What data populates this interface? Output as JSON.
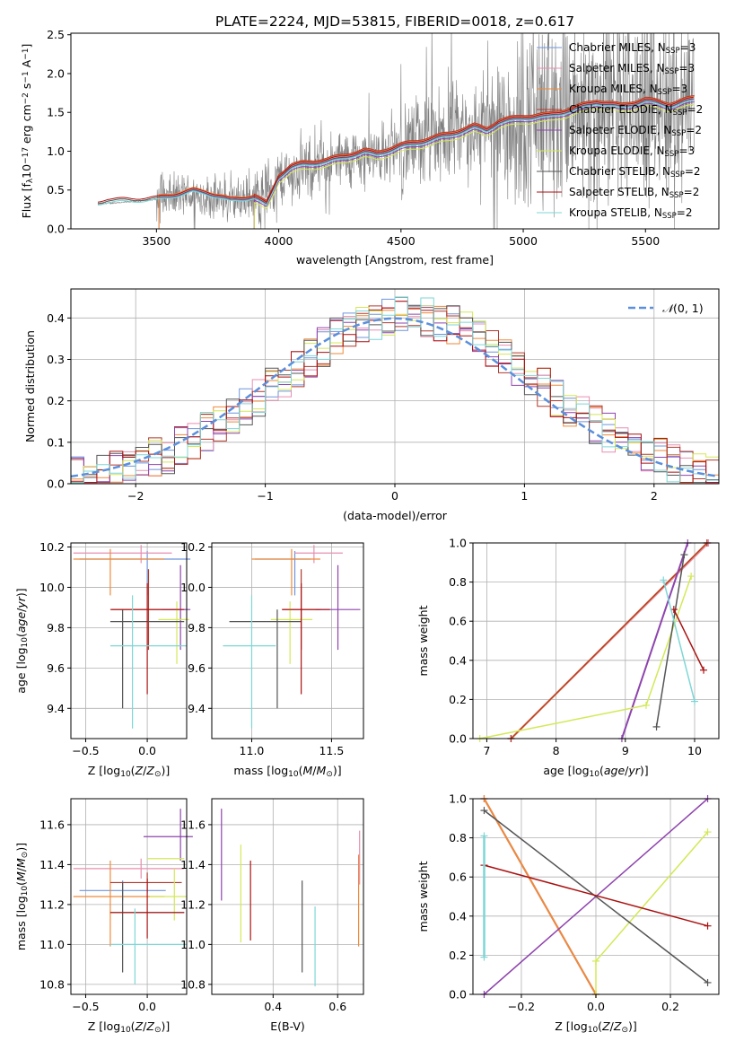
{
  "figure": {
    "title": "PLATE=2224, MJD=53815, FIBERID=0018, z=0.617"
  },
  "colors": {
    "chabrier_miles": "#6f94dc",
    "salpeter_miles": "#e78fb1",
    "kroupa_miles": "#ee8a3a",
    "chabrier_elodie": "#b0392e",
    "salpeter_elodie": "#8e44ad",
    "kroupa_elodie": "#d4e857",
    "chabrier_stelib": "#555555",
    "salpeter_stelib": "#aa1111",
    "kroupa_stelib": "#7fd6d6",
    "data": "#808080",
    "normal_curve": "#5b8fdc"
  },
  "chart_data": [
    {
      "type": "line",
      "ylabel": "Flux [f$_\\lambda$10$^{-17}$ erg cm$^{-2}$ s$^{-1}$ A$^{-1}$]",
      "ylabel_text": "Flux [fλ10⁻¹⁷ erg cm⁻² s⁻¹ A⁻¹]",
      "xlabel": "wavelength [Angstrom, rest frame]",
      "xlim": [
        3150,
        5800
      ],
      "ylim": [
        0,
        2.52
      ],
      "xticks": [
        3500,
        4000,
        4500,
        5000,
        5500
      ],
      "yticks": [
        0.0,
        0.5,
        1.0,
        1.5,
        2.0,
        2.5
      ],
      "grid": false,
      "legend_position": "upper-right",
      "data_series": {
        "name": "data",
        "x_start": 3260,
        "x_end": 5700,
        "continuum_x": [
          3260,
          3400,
          3500,
          3600,
          3700,
          3800,
          3900,
          4000,
          4100,
          4200,
          4300,
          4400,
          4500,
          4600,
          4700,
          4800,
          4900,
          5000,
          5100,
          5200,
          5300,
          5400,
          5500,
          5600,
          5700
        ],
        "continuum_y": [
          0.32,
          0.35,
          0.38,
          0.44,
          0.42,
          0.36,
          0.4,
          0.64,
          0.74,
          0.84,
          0.9,
          0.96,
          1.05,
          1.12,
          1.22,
          1.3,
          1.37,
          1.45,
          1.46,
          1.52,
          1.62,
          1.55,
          1.65,
          1.58,
          1.68
        ]
      },
      "model_continuum_x": [
        3260,
        3300,
        3400,
        3500,
        3600,
        3650,
        3700,
        3800,
        3900,
        3950,
        4000,
        4050,
        4100,
        4200,
        4300,
        4350,
        4400,
        4500,
        4600,
        4700,
        4800,
        4850,
        4900,
        5000,
        5100,
        5200,
        5300,
        5400,
        5500,
        5600,
        5700
      ],
      "model_continuum_y": [
        0.32,
        0.36,
        0.36,
        0.38,
        0.44,
        0.48,
        0.46,
        0.36,
        0.4,
        0.3,
        0.66,
        0.78,
        0.82,
        0.86,
        0.94,
        0.98,
        0.95,
        1.05,
        1.12,
        1.2,
        1.3,
        1.26,
        1.36,
        1.42,
        1.44,
        1.52,
        1.62,
        1.56,
        1.64,
        1.58,
        1.66
      ],
      "series": [
        {
          "name": "Chabrier MILES, N$_{SSP}$=3",
          "label": "Chabrier MILES, N",
          "sub": "SSP",
          "suffix": "=3",
          "color_key": "chabrier_miles",
          "x_start": 3510,
          "offset": 0.0
        },
        {
          "name": "Salpeter MILES, N$_{SSP}$=3",
          "label": "Salpeter MILES, N",
          "sub": "SSP",
          "suffix": "=3",
          "color_key": "salpeter_miles",
          "x_start": 3510,
          "offset": 0.02
        },
        {
          "name": "Kroupa MILES, N$_{SSP}$=3",
          "label": "Kroupa MILES, N",
          "sub": "SSP",
          "suffix": "=3",
          "color_key": "kroupa_miles",
          "x_start": 3510,
          "offset": 0.04
        },
        {
          "name": "Chabrier ELODIE, N$_{SSP}$=2",
          "label": "Chabrier ELODIE, N",
          "sub": "SSP",
          "suffix": "=2",
          "color_key": "chabrier_elodie",
          "x_start": 3900,
          "offset": 0.05
        },
        {
          "name": "Salpeter ELODIE, N$_{SSP}$=2",
          "label": "Salpeter ELODIE, N",
          "sub": "SSP",
          "suffix": "=2",
          "color_key": "salpeter_elodie",
          "x_start": 3900,
          "offset": -0.03
        },
        {
          "name": "Kroupa ELODIE, N$_{SSP}$=3",
          "label": "Kroupa ELODIE, N",
          "sub": "SSP",
          "suffix": "=3",
          "color_key": "kroupa_elodie",
          "x_start": 3900,
          "offset": -0.06
        },
        {
          "name": "Chabrier STELIB, N$_{SSP}$=2",
          "label": "Chabrier STELIB, N",
          "sub": "SSP",
          "suffix": "=2",
          "color_key": "chabrier_stelib",
          "x_start": 3260,
          "offset": 0.01
        },
        {
          "name": "Salpeter STELIB, N$_{SSP}$=2",
          "label": "Salpeter STELIB, N",
          "sub": "SSP",
          "suffix": "=2",
          "color_key": "salpeter_stelib",
          "x_start": 3260,
          "offset": 0.03
        },
        {
          "name": "Kroupa STELIB, N$_{SSP}$=2",
          "label": "Kroupa STELIB, N",
          "sub": "SSP",
          "suffix": "=2",
          "color_key": "kroupa_stelib",
          "x_start": 3260,
          "offset": -0.01
        }
      ]
    },
    {
      "type": "histogram",
      "xlabel": "(data-model)/error",
      "ylabel": "Normed distribution",
      "xlim": [
        -2.5,
        2.5
      ],
      "ylim": [
        0,
        0.47
      ],
      "xticks": [
        -2,
        -1,
        0,
        1,
        2
      ],
      "yticks": [
        0.0,
        0.1,
        0.2,
        0.3,
        0.4
      ],
      "grid": true,
      "bin_width": 0.1,
      "legend_position": "upper-right",
      "legend_label": "N(0,1)",
      "curve": {
        "name": "N(0,1)",
        "mean": 0,
        "sigma": 1,
        "color_key": "normal_curve"
      },
      "hist_color_keys": [
        "chabrier_miles",
        "salpeter_miles",
        "kroupa_miles",
        "chabrier_elodie",
        "salpeter_elodie",
        "kroupa_elodie",
        "chabrier_stelib",
        "salpeter_stelib",
        "kroupa_stelib"
      ],
      "jitter": 0.05
    },
    {
      "type": "errorbar",
      "xlabel": "Z [log$_{10}$(Z/Z$_\\odot$)]",
      "ylabel": "age  [log$_{10}$(age/yr)]",
      "xlim": [
        -0.62,
        0.32
      ],
      "ylim": [
        9.25,
        10.22
      ],
      "xticks": [
        -0.5,
        0.0
      ],
      "yticks": [
        9.4,
        9.6,
        9.8,
        10.0,
        10.2
      ],
      "grid": true,
      "points": [
        {
          "color_key": "chabrier_miles",
          "x": 0.0,
          "xerr_lo": 0.55,
          "xerr_hi": 0.35,
          "y": 10.14,
          "yerr_lo": 0.18,
          "yerr_hi": 0.04
        },
        {
          "color_key": "salpeter_miles",
          "x": -0.05,
          "xerr_lo": 0.55,
          "xerr_hi": 0.25,
          "y": 10.17,
          "yerr_lo": 0.05,
          "yerr_hi": 0.04
        },
        {
          "color_key": "kroupa_miles",
          "x": -0.3,
          "xerr_lo": 0.3,
          "xerr_hi": 0.44,
          "y": 10.14,
          "yerr_lo": 0.18,
          "yerr_hi": 0.05
        },
        {
          "color_key": "chabrier_elodie",
          "x": 0.01,
          "xerr_lo": 0.3,
          "xerr_hi": 0.25,
          "y": 9.89,
          "yerr_lo": 0.2,
          "yerr_hi": 0.2
        },
        {
          "color_key": "salpeter_elodie",
          "x": 0.27,
          "xerr_lo": 0.15,
          "xerr_hi": 0.08,
          "y": 9.89,
          "yerr_lo": 0.2,
          "yerr_hi": 0.22
        },
        {
          "color_key": "kroupa_elodie",
          "x": 0.24,
          "xerr_lo": 0.15,
          "xerr_hi": 0.1,
          "y": 9.84,
          "yerr_lo": 0.22,
          "yerr_hi": 0.09
        },
        {
          "color_key": "chabrier_stelib",
          "x": -0.2,
          "xerr_lo": 0.1,
          "xerr_hi": 0.5,
          "y": 9.83,
          "yerr_lo": 0.43,
          "yerr_hi": 0.06
        },
        {
          "color_key": "salpeter_stelib",
          "x": 0.0,
          "xerr_lo": 0.3,
          "xerr_hi": 0.3,
          "y": 9.89,
          "yerr_lo": 0.42,
          "yerr_hi": 0.13
        },
        {
          "color_key": "kroupa_stelib",
          "x": -0.12,
          "xerr_lo": 0.18,
          "xerr_hi": 0.44,
          "y": 9.71,
          "yerr_lo": 0.41,
          "yerr_hi": 0.25
        }
      ]
    },
    {
      "type": "errorbar",
      "xlabel": "mass [log$_{10}$(M/M$_\\odot$)]",
      "ylabel": "",
      "xlim": [
        10.75,
        11.7
      ],
      "ylim": [
        9.25,
        10.22
      ],
      "xticks": [
        11.0,
        11.5
      ],
      "yticks": [
        9.4,
        9.6,
        9.8,
        10.0,
        10.2
      ],
      "grid": true,
      "points": [
        {
          "color_key": "chabrier_miles",
          "x": 11.27,
          "xerr_lo": 0.25,
          "xerr_hi": 0.1,
          "y": 10.14,
          "yerr_lo": 0.18,
          "yerr_hi": 0.04
        },
        {
          "color_key": "salpeter_miles",
          "x": 11.39,
          "xerr_lo": 0.12,
          "xerr_hi": 0.18,
          "y": 10.17,
          "yerr_lo": 0.05,
          "yerr_hi": 0.04
        },
        {
          "color_key": "kroupa_miles",
          "x": 11.25,
          "xerr_lo": 0.25,
          "xerr_hi": 0.18,
          "y": 10.14,
          "yerr_lo": 0.18,
          "yerr_hi": 0.05
        },
        {
          "color_key": "chabrier_elodie",
          "x": 11.31,
          "xerr_lo": 0.12,
          "xerr_hi": 0.12,
          "y": 9.89,
          "yerr_lo": 0.2,
          "yerr_hi": 0.2
        },
        {
          "color_key": "salpeter_elodie",
          "x": 11.54,
          "xerr_lo": 0.14,
          "xerr_hi": 0.14,
          "y": 9.89,
          "yerr_lo": 0.2,
          "yerr_hi": 0.22
        },
        {
          "color_key": "kroupa_elodie",
          "x": 11.24,
          "xerr_lo": 0.12,
          "xerr_hi": 0.14,
          "y": 9.84,
          "yerr_lo": 0.22,
          "yerr_hi": 0.09
        },
        {
          "color_key": "chabrier_stelib",
          "x": 11.16,
          "xerr_lo": 0.3,
          "xerr_hi": 0.15,
          "y": 9.83,
          "yerr_lo": 0.43,
          "yerr_hi": 0.06
        },
        {
          "color_key": "salpeter_stelib",
          "x": 11.31,
          "xerr_lo": 0.12,
          "xerr_hi": 0.18,
          "y": 9.89,
          "yerr_lo": 0.42,
          "yerr_hi": 0.13
        },
        {
          "color_key": "kroupa_stelib",
          "x": 11.0,
          "xerr_lo": 0.18,
          "xerr_hi": 0.15,
          "y": 9.71,
          "yerr_lo": 0.41,
          "yerr_hi": 0.25
        }
      ]
    },
    {
      "type": "line",
      "xlabel": "age  [log$_{10}$(age/yr)]",
      "ylabel": "mass weight",
      "xlim": [
        6.8,
        10.35
      ],
      "ylim": [
        0,
        1
      ],
      "xticks": [
        7,
        8,
        9,
        10
      ],
      "yticks": [
        0.0,
        0.2,
        0.4,
        0.6,
        0.8,
        1.0
      ],
      "grid": true,
      "series": [
        {
          "color_key": "chabrier_miles",
          "x": [
            7.35,
            10.18
          ],
          "y": [
            0.0,
            1.0
          ],
          "width": 2
        },
        {
          "color_key": "salpeter_miles",
          "x": [
            7.35,
            10.2
          ],
          "y": [
            0.0,
            1.0
          ],
          "width": 2
        },
        {
          "color_key": "kroupa_miles",
          "x": [
            7.35,
            10.18
          ],
          "y": [
            0.0,
            1.0
          ],
          "width": 2
        },
        {
          "color_key": "chabrier_elodie",
          "x": [
            7.35,
            10.18
          ],
          "y": [
            0.0,
            1.0
          ],
          "width": 1.2
        },
        {
          "color_key": "salpeter_elodie",
          "x": [
            8.95,
            9.9
          ],
          "y": [
            0.0,
            1.0
          ],
          "width": 2
        },
        {
          "color_key": "kroupa_elodie",
          "x": [
            6.9,
            9.3,
            9.95
          ],
          "y": [
            0.0,
            0.17,
            0.83
          ],
          "width": 1.5
        },
        {
          "color_key": "chabrier_stelib",
          "x": [
            9.45,
            9.85
          ],
          "y": [
            0.06,
            0.94
          ],
          "width": 1.5
        },
        {
          "color_key": "salpeter_stelib",
          "x": [
            9.7,
            10.13
          ],
          "y": [
            0.66,
            0.35
          ],
          "width": 1.5
        },
        {
          "color_key": "kroupa_stelib",
          "x": [
            9.55,
            10.0
          ],
          "y": [
            0.81,
            0.19
          ],
          "width": 1.5
        }
      ]
    },
    {
      "type": "errorbar",
      "xlabel": "Z [log$_{10}$(Z/Z$_\\odot$)]",
      "ylabel": "mass [log$_{10}$(M/M$_\\odot$)]",
      "xlim": [
        -0.62,
        0.32
      ],
      "ylim": [
        10.75,
        11.73
      ],
      "xticks": [
        -0.5,
        0.0
      ],
      "yticks": [
        10.8,
        11.0,
        11.2,
        11.4,
        11.6
      ],
      "grid": true,
      "points": [
        {
          "color_key": "chabrier_miles",
          "x": -0.2,
          "xerr_lo": 0.35,
          "xerr_hi": 0.35,
          "y": 11.27,
          "yerr_lo": 0.05,
          "yerr_hi": 0.05
        },
        {
          "color_key": "salpeter_miles",
          "x": -0.05,
          "xerr_lo": 0.55,
          "xerr_hi": 0.35,
          "y": 11.38,
          "yerr_lo": 0.05,
          "yerr_hi": 0.05
        },
        {
          "color_key": "kroupa_miles",
          "x": -0.3,
          "xerr_lo": 0.3,
          "xerr_hi": 0.44,
          "y": 11.24,
          "yerr_lo": 0.25,
          "yerr_hi": 0.18
        },
        {
          "color_key": "chabrier_elodie",
          "x": 0.0,
          "xerr_lo": 0.3,
          "xerr_hi": 0.28,
          "y": 11.31,
          "yerr_lo": 0.05,
          "yerr_hi": 0.05
        },
        {
          "color_key": "salpeter_elodie",
          "x": 0.27,
          "xerr_lo": 0.3,
          "xerr_hi": 0.1,
          "y": 11.54,
          "yerr_lo": 0.12,
          "yerr_hi": 0.14
        },
        {
          "color_key": "kroupa_elodie",
          "x": 0.22,
          "xerr_lo": 0.2,
          "xerr_hi": 0.1,
          "y": 11.24,
          "yerr_lo": 0.12,
          "yerr_hi": 0.14
        },
        {
          "color_key": "chabrier_stelib",
          "x": -0.2,
          "xerr_lo": 0.1,
          "xerr_hi": 0.5,
          "y": 11.16,
          "yerr_lo": 0.3,
          "yerr_hi": 0.15
        },
        {
          "color_key": "salpeter_stelib",
          "x": 0.0,
          "xerr_lo": 0.3,
          "xerr_hi": 0.3,
          "y": 11.16,
          "yerr_lo": 0.13,
          "yerr_hi": 0.17
        },
        {
          "color_key": "kroupa_stelib",
          "x": -0.1,
          "xerr_lo": 0.2,
          "xerr_hi": 0.42,
          "y": 11.0,
          "yerr_lo": 0.2,
          "yerr_hi": 0.18
        },
        {
          "color_key": "kroupa_elodie",
          "x": 0.0,
          "xerr_lo": 0.0,
          "xerr_hi": 0.3,
          "y": 11.43,
          "yerr_lo": 0.0,
          "yerr_hi": 0.0
        }
      ]
    },
    {
      "type": "errorbar",
      "xlabel": "E(B-V)",
      "ylabel": "",
      "xlim": [
        0.21,
        0.68
      ],
      "ylim": [
        10.75,
        11.73
      ],
      "xticks": [
        0.4,
        0.6
      ],
      "yticks": [
        10.8,
        11.0,
        11.2,
        11.4,
        11.6
      ],
      "grid": true,
      "points": [
        {
          "color_key": "salpeter_elodie",
          "x": 0.24,
          "y": 11.45,
          "yerr_lo": 0.23,
          "yerr_hi": 0.23
        },
        {
          "color_key": "kroupa_elodie",
          "x": 0.3,
          "y": 11.25,
          "yerr_lo": 0.24,
          "yerr_hi": 0.25
        },
        {
          "color_key": "salpeter_stelib",
          "x": 0.33,
          "y": 11.22,
          "yerr_lo": 0.2,
          "yerr_hi": 0.2
        },
        {
          "color_key": "chabrier_stelib",
          "x": 0.49,
          "y": 11.09,
          "yerr_lo": 0.23,
          "yerr_hi": 0.23
        },
        {
          "color_key": "kroupa_stelib",
          "x": 0.53,
          "y": 10.99,
          "yerr_lo": 0.2,
          "yerr_hi": 0.2
        },
        {
          "color_key": "kroupa_miles",
          "x": 0.665,
          "y": 11.25,
          "yerr_lo": 0.26,
          "yerr_hi": 0.2
        },
        {
          "color_key": "salpeter_miles",
          "x": 0.668,
          "y": 11.4,
          "yerr_lo": 0.1,
          "yerr_hi": 0.17
        }
      ]
    },
    {
      "type": "line",
      "xlabel": "Z [log$_{10}$(Z/Z$_\\odot$)]",
      "ylabel": "mass weight",
      "xlim": [
        -0.33,
        0.33
      ],
      "ylim": [
        0,
        1
      ],
      "xticks": [
        -0.2,
        0.0,
        0.2
      ],
      "yticks": [
        0.0,
        0.2,
        0.4,
        0.6,
        0.8,
        1.0
      ],
      "grid": true,
      "series": [
        {
          "color_key": "chabrier_miles",
          "x": [
            -0.3,
            0.0
          ],
          "y": [
            1.0,
            0.0
          ],
          "width": 2
        },
        {
          "color_key": "salpeter_miles",
          "x": [
            -0.3,
            0.0
          ],
          "y": [
            1.0,
            0.0
          ],
          "width": 2
        },
        {
          "color_key": "kroupa_miles",
          "x": [
            -0.3,
            0.0
          ],
          "y": [
            1.0,
            0.0
          ],
          "width": 2
        },
        {
          "color_key": "salpeter_elodie",
          "x": [
            -0.3,
            0.3
          ],
          "y": [
            0.0,
            1.0
          ],
          "width": 1.5
        },
        {
          "color_key": "kroupa_elodie",
          "x": [
            0.0,
            0.0,
            0.3
          ],
          "y": [
            0.0,
            0.17,
            0.83
          ],
          "width": 1.5
        },
        {
          "color_key": "chabrier_stelib",
          "x": [
            -0.3,
            0.3
          ],
          "y": [
            0.94,
            0.06
          ],
          "width": 1.5
        },
        {
          "color_key": "salpeter_stelib",
          "x": [
            -0.3,
            0.3
          ],
          "y": [
            0.66,
            0.35
          ],
          "width": 1.5
        },
        {
          "color_key": "kroupa_stelib",
          "x": [
            -0.3,
            -0.3
          ],
          "y": [
            0.81,
            0.19
          ],
          "width": 2.5
        }
      ]
    }
  ]
}
